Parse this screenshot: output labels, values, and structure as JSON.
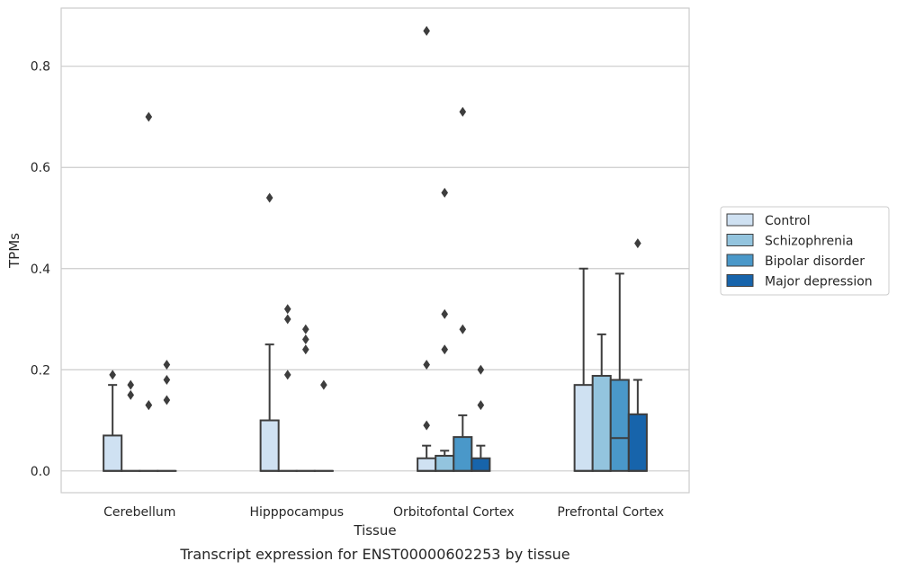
{
  "chart_data": {
    "type": "box",
    "title": "",
    "caption": "Transcript expression for ENST00000602253 by tissue",
    "xlabel": "Tissue",
    "ylabel": "TPMs",
    "ylim": [
      -0.043,
      0.915
    ],
    "yticks": [
      0.0,
      0.2,
      0.4,
      0.6,
      0.8
    ],
    "ytick_labels": [
      "0.0",
      "0.2",
      "0.4",
      "0.6",
      "0.8"
    ],
    "grid": "horizontal",
    "legend_position": "right",
    "categories": [
      "Cerebellum",
      "Hipppocampus",
      "Orbitofontal Cortex",
      "Prefrontal Cortex"
    ],
    "series": [
      {
        "name": "Control",
        "color": "#cfe1f2"
      },
      {
        "name": "Schizophrenia",
        "color": "#93c4de"
      },
      {
        "name": "Bipolar disorder",
        "color": "#4a98c9"
      },
      {
        "name": "Major depression",
        "color": "#1764ab"
      }
    ],
    "boxes": [
      [
        {
          "q1": 0,
          "median": 0,
          "q3": 0.07,
          "whisker_low": 0,
          "whisker_high": 0.17,
          "outliers": [
            0.19
          ]
        },
        {
          "q1": 0,
          "median": 0,
          "q3": 0,
          "whisker_low": 0,
          "whisker_high": 0,
          "outliers": [
            0.15,
            0.17
          ]
        },
        {
          "q1": 0,
          "median": 0,
          "q3": 0,
          "whisker_low": 0,
          "whisker_high": 0,
          "outliers": [
            0.13,
            0.13,
            0.7
          ]
        },
        {
          "q1": 0,
          "median": 0,
          "q3": 0,
          "whisker_low": 0,
          "whisker_high": 0,
          "outliers": [
            0.14,
            0.18,
            0.21
          ]
        }
      ],
      [
        {
          "q1": 0,
          "median": 0,
          "q3": 0.1,
          "whisker_low": 0,
          "whisker_high": 0.25,
          "outliers": [
            0.54
          ]
        },
        {
          "q1": 0,
          "median": 0,
          "q3": 0,
          "whisker_low": 0,
          "whisker_high": 0,
          "outliers": [
            0.19,
            0.3,
            0.32
          ]
        },
        {
          "q1": 0,
          "median": 0,
          "q3": 0,
          "whisker_low": 0,
          "whisker_high": 0,
          "outliers": [
            0.24,
            0.26,
            0.28
          ]
        },
        {
          "q1": 0,
          "median": 0,
          "q3": 0,
          "whisker_low": 0,
          "whisker_high": 0,
          "outliers": [
            0.17
          ]
        }
      ],
      [
        {
          "q1": 0,
          "median": 0,
          "q3": 0.025,
          "whisker_low": 0,
          "whisker_high": 0.05,
          "outliers": [
            0.09,
            0.21,
            0.87
          ]
        },
        {
          "q1": 0,
          "median": 0,
          "q3": 0.03,
          "whisker_low": 0,
          "whisker_high": 0.04,
          "outliers": [
            0.24,
            0.31,
            0.55
          ]
        },
        {
          "q1": 0,
          "median": 0,
          "q3": 0.067,
          "whisker_low": 0,
          "whisker_high": 0.11,
          "outliers": [
            0.28,
            0.71
          ]
        },
        {
          "q1": 0,
          "median": 0,
          "q3": 0.025,
          "whisker_low": 0,
          "whisker_high": 0.05,
          "outliers": [
            0.13,
            0.2
          ]
        }
      ],
      [
        {
          "q1": 0,
          "median": 0,
          "q3": 0.17,
          "whisker_low": 0,
          "whisker_high": 0.4,
          "outliers": []
        },
        {
          "q1": 0,
          "median": 0,
          "q3": 0.188,
          "whisker_low": 0,
          "whisker_high": 0.27,
          "outliers": []
        },
        {
          "q1": 0,
          "median": 0.065,
          "q3": 0.18,
          "whisker_low": 0,
          "whisker_high": 0.39,
          "outliers": []
        },
        {
          "q1": 0,
          "median": 0,
          "q3": 0.112,
          "whisker_low": 0,
          "whisker_high": 0.18,
          "outliers": [
            0.45
          ]
        }
      ]
    ]
  }
}
